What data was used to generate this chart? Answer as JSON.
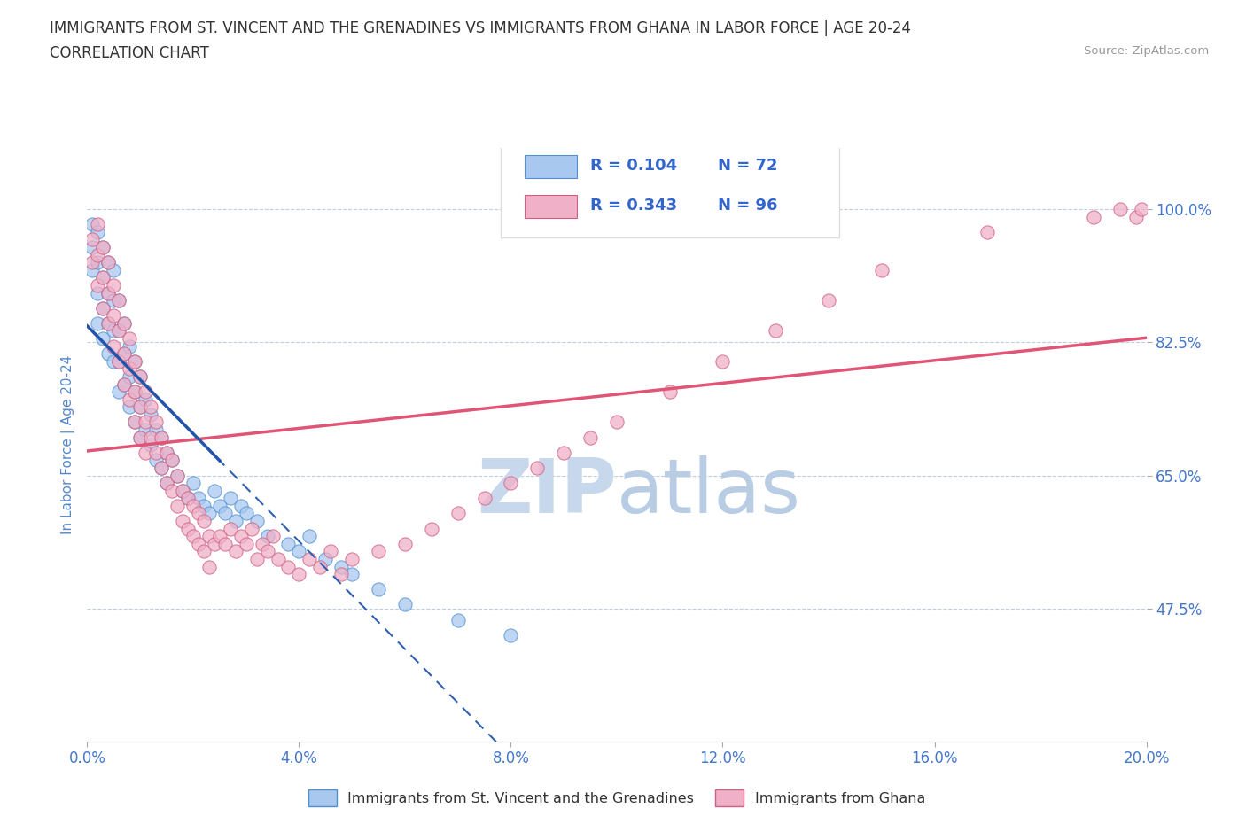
{
  "title_line1": "IMMIGRANTS FROM ST. VINCENT AND THE GRENADINES VS IMMIGRANTS FROM GHANA IN LABOR FORCE | AGE 20-24",
  "title_line2": "CORRELATION CHART",
  "source_text": "Source: ZipAtlas.com",
  "ylabel": "In Labor Force | Age 20-24",
  "xlim": [
    0.0,
    0.2
  ],
  "ylim": [
    0.3,
    1.08
  ],
  "yticks": [
    0.475,
    0.65,
    0.825,
    1.0
  ],
  "ytick_labels": [
    "47.5%",
    "65.0%",
    "82.5%",
    "100.0%"
  ],
  "xticks": [
    0.0,
    0.04,
    0.08,
    0.12,
    0.16,
    0.2
  ],
  "xtick_labels": [
    "0.0%",
    "4.0%",
    "8.0%",
    "12.0%",
    "16.0%",
    "20.0%"
  ],
  "series": [
    {
      "name": "Immigrants from St. Vincent and the Grenadines",
      "color": "#a8c8f0",
      "edge_color": "#5090d0",
      "R": 0.104,
      "N": 72,
      "trend_color": "#3060b0",
      "trend_style": "--",
      "x": [
        0.001,
        0.001,
        0.001,
        0.002,
        0.002,
        0.002,
        0.002,
        0.003,
        0.003,
        0.003,
        0.003,
        0.004,
        0.004,
        0.004,
        0.004,
        0.005,
        0.005,
        0.005,
        0.005,
        0.006,
        0.006,
        0.006,
        0.006,
        0.007,
        0.007,
        0.007,
        0.008,
        0.008,
        0.008,
        0.009,
        0.009,
        0.009,
        0.01,
        0.01,
        0.01,
        0.011,
        0.011,
        0.012,
        0.012,
        0.013,
        0.013,
        0.014,
        0.014,
        0.015,
        0.015,
        0.016,
        0.017,
        0.018,
        0.019,
        0.02,
        0.021,
        0.022,
        0.023,
        0.024,
        0.025,
        0.026,
        0.027,
        0.028,
        0.029,
        0.03,
        0.032,
        0.034,
        0.038,
        0.04,
        0.042,
        0.045,
        0.048,
        0.05,
        0.055,
        0.06,
        0.07,
        0.08
      ],
      "y": [
        0.98,
        0.95,
        0.92,
        0.97,
        0.93,
        0.89,
        0.85,
        0.95,
        0.91,
        0.87,
        0.83,
        0.93,
        0.89,
        0.85,
        0.81,
        0.92,
        0.88,
        0.84,
        0.8,
        0.88,
        0.84,
        0.8,
        0.76,
        0.85,
        0.81,
        0.77,
        0.82,
        0.78,
        0.74,
        0.8,
        0.76,
        0.72,
        0.78,
        0.74,
        0.7,
        0.75,
        0.71,
        0.73,
        0.69,
        0.71,
        0.67,
        0.7,
        0.66,
        0.68,
        0.64,
        0.67,
        0.65,
        0.63,
        0.62,
        0.64,
        0.62,
        0.61,
        0.6,
        0.63,
        0.61,
        0.6,
        0.62,
        0.59,
        0.61,
        0.6,
        0.59,
        0.57,
        0.56,
        0.55,
        0.57,
        0.54,
        0.53,
        0.52,
        0.5,
        0.48,
        0.46,
        0.44
      ]
    },
    {
      "name": "Immigrants from Ghana",
      "color": "#f0b0c8",
      "edge_color": "#d06080",
      "R": 0.343,
      "N": 96,
      "trend_color": "#e05575",
      "trend_style": "-",
      "x": [
        0.001,
        0.001,
        0.002,
        0.002,
        0.002,
        0.003,
        0.003,
        0.003,
        0.004,
        0.004,
        0.004,
        0.005,
        0.005,
        0.005,
        0.006,
        0.006,
        0.006,
        0.007,
        0.007,
        0.007,
        0.008,
        0.008,
        0.008,
        0.009,
        0.009,
        0.009,
        0.01,
        0.01,
        0.01,
        0.011,
        0.011,
        0.011,
        0.012,
        0.012,
        0.013,
        0.013,
        0.014,
        0.014,
        0.015,
        0.015,
        0.016,
        0.016,
        0.017,
        0.017,
        0.018,
        0.018,
        0.019,
        0.019,
        0.02,
        0.02,
        0.021,
        0.021,
        0.022,
        0.022,
        0.023,
        0.023,
        0.024,
        0.025,
        0.026,
        0.027,
        0.028,
        0.029,
        0.03,
        0.031,
        0.032,
        0.033,
        0.034,
        0.035,
        0.036,
        0.038,
        0.04,
        0.042,
        0.044,
        0.046,
        0.048,
        0.05,
        0.055,
        0.06,
        0.065,
        0.07,
        0.075,
        0.08,
        0.085,
        0.09,
        0.095,
        0.1,
        0.11,
        0.12,
        0.13,
        0.14,
        0.15,
        0.17,
        0.19,
        0.195,
        0.198,
        0.199
      ],
      "y": [
        0.96,
        0.93,
        0.98,
        0.94,
        0.9,
        0.95,
        0.91,
        0.87,
        0.93,
        0.89,
        0.85,
        0.9,
        0.86,
        0.82,
        0.88,
        0.84,
        0.8,
        0.85,
        0.81,
        0.77,
        0.83,
        0.79,
        0.75,
        0.8,
        0.76,
        0.72,
        0.78,
        0.74,
        0.7,
        0.76,
        0.72,
        0.68,
        0.74,
        0.7,
        0.72,
        0.68,
        0.7,
        0.66,
        0.68,
        0.64,
        0.67,
        0.63,
        0.65,
        0.61,
        0.63,
        0.59,
        0.62,
        0.58,
        0.61,
        0.57,
        0.6,
        0.56,
        0.59,
        0.55,
        0.57,
        0.53,
        0.56,
        0.57,
        0.56,
        0.58,
        0.55,
        0.57,
        0.56,
        0.58,
        0.54,
        0.56,
        0.55,
        0.57,
        0.54,
        0.53,
        0.52,
        0.54,
        0.53,
        0.55,
        0.52,
        0.54,
        0.55,
        0.56,
        0.58,
        0.6,
        0.62,
        0.64,
        0.66,
        0.68,
        0.7,
        0.72,
        0.76,
        0.8,
        0.84,
        0.88,
        0.92,
        0.97,
        0.99,
        1.0,
        0.99,
        1.0
      ]
    }
  ],
  "watermark_zip": "ZIP",
  "watermark_atlas": "atlas",
  "watermark_color": "#ccddf0",
  "legend_color": "#3366cc",
  "background_color": "#ffffff",
  "grid_color": "#c0cfe0",
  "title_fontsize": 12,
  "subtitle_fontsize": 12,
  "axis_label_color": "#5588cc",
  "tick_label_color": "#4477cc"
}
